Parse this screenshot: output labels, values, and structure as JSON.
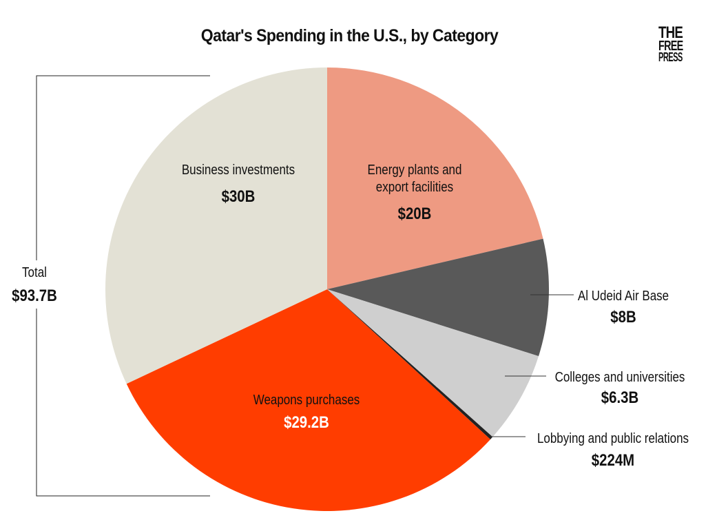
{
  "chart_data": {
    "type": "pie",
    "title": "Qatar's Spending in the U.S., by Category",
    "total_label": "Total",
    "total_value": "$93.7B",
    "slices": [
      {
        "label": "Energy plants and export facilities",
        "value": 20.0,
        "value_label": "$20B",
        "color": "#EE9A82"
      },
      {
        "label": "Al Udeid Air Base",
        "value": 8.0,
        "value_label": "$8B",
        "color": "#595959"
      },
      {
        "label": "Colleges and universities",
        "value": 6.3,
        "value_label": "$6.3B",
        "color": "#CFCFCF"
      },
      {
        "label": "Lobbying and public relations",
        "value": 0.224,
        "value_label": "$224M",
        "color": "#222222"
      },
      {
        "label": "Weapons purchases",
        "value": 29.2,
        "value_label": "$29.2B",
        "color": "#FF3D00"
      },
      {
        "label": "Business investments",
        "value": 30.0,
        "value_label": "$30B",
        "color": "#E3E1D5"
      }
    ]
  },
  "brand": {
    "logo_lines": [
      "THE",
      "FREE",
      "PRESS"
    ]
  }
}
